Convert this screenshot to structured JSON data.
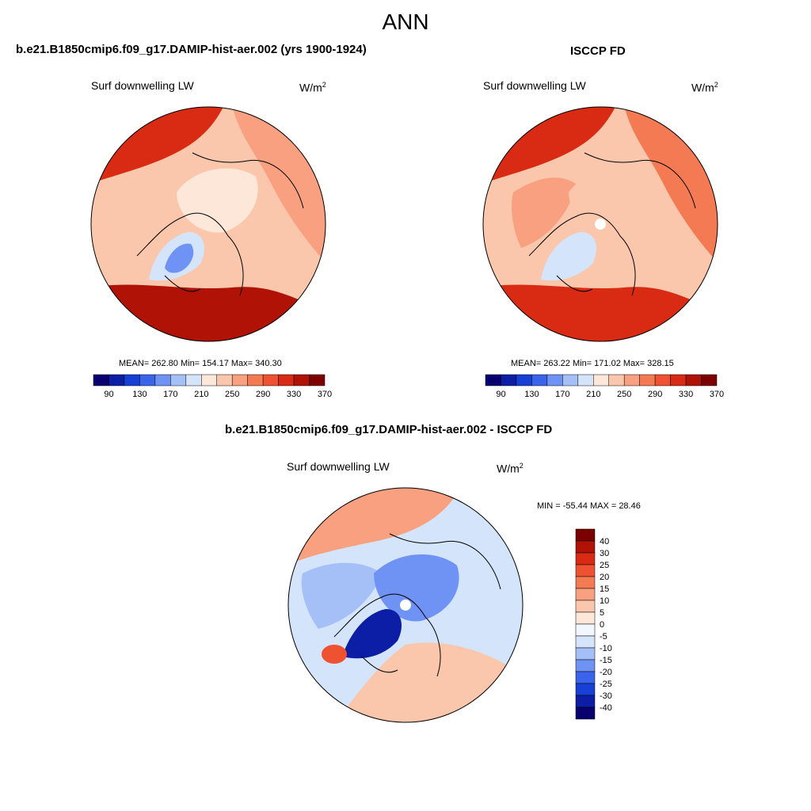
{
  "header": {
    "title": "ANN"
  },
  "panels": {
    "model": {
      "title": "b.e21.B1850cmip6.f09_g17.DAMIP-hist-aer.002 (yrs 1900-1924)",
      "variable": "Surf downwelling LW",
      "units_base": "W/m",
      "units_exp": "2",
      "stats": "MEAN= 262.80  Min= 154.17  Max= 340.30"
    },
    "obs": {
      "title": "ISCCP FD",
      "variable": "Surf downwelling LW",
      "units_base": "W/m",
      "units_exp": "2",
      "stats": "MEAN= 263.22  Min= 171.02  Max= 328.15"
    },
    "diff": {
      "title": "b.e21.B1850cmip6.f09_g17.DAMIP-hist-aer.002 - ISCCP FD",
      "variable": "Surf downwelling LW",
      "units_base": "W/m",
      "units_exp": "2",
      "stats": "MIN = -55.44 MAX =  28.46"
    }
  },
  "colorbars": {
    "abs_colors": [
      "#08006f",
      "#0c1ea6",
      "#1740d6",
      "#3b64ec",
      "#6f93f4",
      "#a4c0f7",
      "#d4e4fb",
      "#fde7d9",
      "#fbc7ac",
      "#f8a07f",
      "#f47a54",
      "#ee5230",
      "#d92b13",
      "#b01305",
      "#7c0000"
    ],
    "abs_ticks": [
      "90",
      "130",
      "170",
      "210",
      "250",
      "290",
      "330",
      "370"
    ],
    "diff_colors": [
      "#7c0000",
      "#b01305",
      "#d92b13",
      "#ee5230",
      "#f47a54",
      "#f8a07f",
      "#fbc7ac",
      "#fde7d9",
      "#f2f7ff",
      "#d4e4fb",
      "#a4c0f7",
      "#6f93f4",
      "#3b64ec",
      "#1740d6",
      "#0c1ea6",
      "#08006f"
    ],
    "diff_ticks": [
      "40",
      "30",
      "25",
      "20",
      "15",
      "10",
      "5",
      "0",
      "-5",
      "-10",
      "-15",
      "-20",
      "-25",
      "-30",
      "-40"
    ]
  },
  "regions": {
    "model": [
      {
        "name": "pacific-warm",
        "value": 320
      },
      {
        "name": "atlantic-warm",
        "value": 335
      },
      {
        "name": "siberia",
        "value": 265
      },
      {
        "name": "canada",
        "value": 240
      },
      {
        "name": "arctic-ocean",
        "value": 225
      },
      {
        "name": "greenland",
        "value": 190
      },
      {
        "name": "greenland-core",
        "value": 165
      }
    ],
    "obs": [
      {
        "name": "pacific-warm",
        "value": 320
      },
      {
        "name": "atlantic-warm",
        "value": 320
      },
      {
        "name": "siberia",
        "value": 275
      },
      {
        "name": "canada",
        "value": 260
      },
      {
        "name": "arctic-ocean",
        "value": 235
      },
      {
        "name": "greenland",
        "value": 205
      }
    ],
    "diff": [
      {
        "name": "pacific",
        "value": 12
      },
      {
        "name": "atlantic-ne",
        "value": 7
      },
      {
        "name": "siberia",
        "value": -7
      },
      {
        "name": "canada",
        "value": -12
      },
      {
        "name": "arctic-ocean",
        "value": -18
      },
      {
        "name": "greenland",
        "value": -35
      },
      {
        "name": "iceland-hotspot",
        "value": 22
      }
    ]
  }
}
